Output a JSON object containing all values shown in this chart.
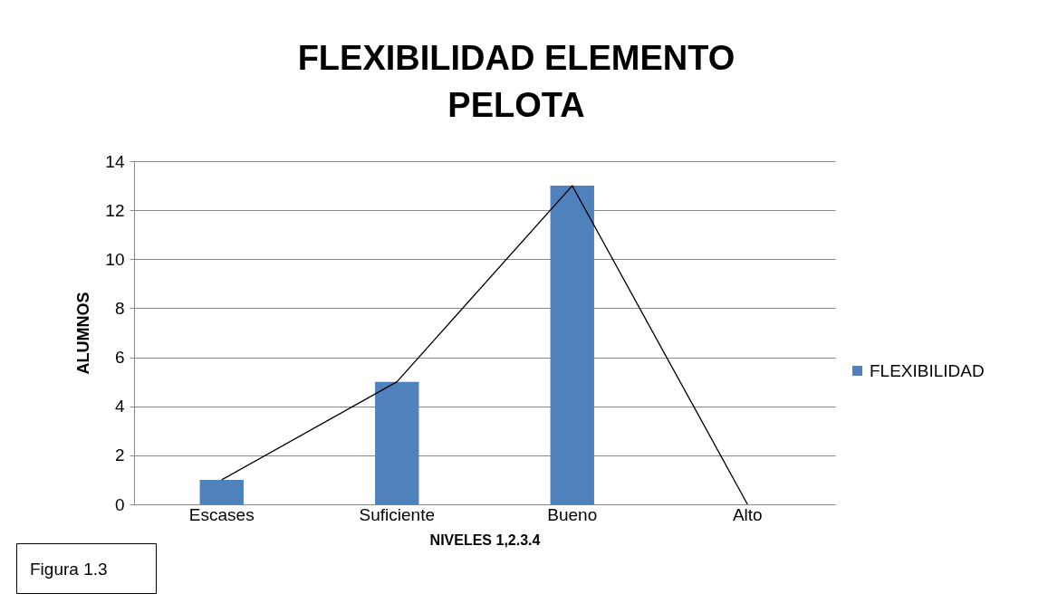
{
  "chart_data": {
    "type": "bar",
    "title": "FLEXIBILIDAD  ELEMENTO PELOTA",
    "xlabel": "NIVELES 1,2.3.4",
    "ylabel": "ALUMNOS",
    "categories": [
      "Escases",
      "Suficiente",
      "Bueno",
      "Alto"
    ],
    "series": [
      {
        "name": "FLEXIBILIDAD",
        "color": "#4f81bd",
        "values": [
          1,
          5,
          13,
          0
        ]
      },
      {
        "type": "line",
        "color": "#000000",
        "values": [
          1,
          5,
          13,
          0
        ]
      }
    ],
    "ylim": [
      0,
      14
    ],
    "yticks": [
      0,
      2,
      4,
      6,
      8,
      10,
      12,
      14
    ],
    "grid": "y",
    "legend": "right",
    "marker": "none",
    "annotations": [
      "Figura 1.3"
    ]
  }
}
